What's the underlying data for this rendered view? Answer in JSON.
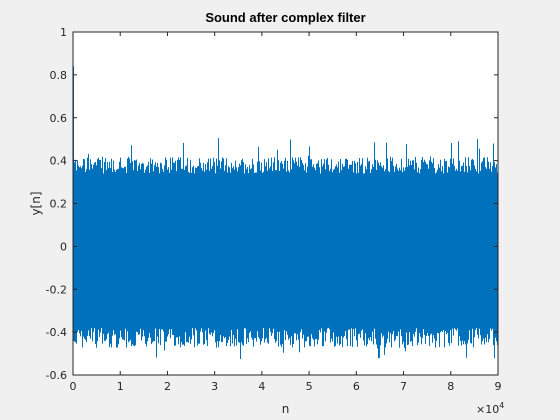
{
  "chart_data": {
    "type": "line",
    "title": "Sound after complex filter",
    "xlabel": "n",
    "ylabel": "y[n]",
    "xlim": [
      0,
      90000
    ],
    "ylim": [
      -0.6,
      1
    ],
    "x_ticks": [
      0,
      10000,
      20000,
      30000,
      40000,
      50000,
      60000,
      70000,
      80000,
      90000
    ],
    "x_tick_labels": [
      "0",
      "1",
      "2",
      "3",
      "4",
      "5",
      "6",
      "7",
      "8",
      "9"
    ],
    "x_exponent_label": "×10",
    "x_exponent_power": "4",
    "y_ticks": [
      -0.6,
      -0.4,
      -0.2,
      0,
      0.2,
      0.4,
      0.6,
      0.8,
      1
    ],
    "y_tick_labels": [
      "-0.6",
      "-0.4",
      "-0.2",
      "0",
      "0.2",
      "0.4",
      "0.6",
      "0.8",
      "1"
    ],
    "series": [
      {
        "color": "#0072bd",
        "n_samples": 88200,
        "initial_spike": 0.84,
        "typical_envelope": [
          -0.38,
          0.4
        ],
        "peak_min": -0.53,
        "peak_max": 0.51
      }
    ],
    "grid": false
  }
}
